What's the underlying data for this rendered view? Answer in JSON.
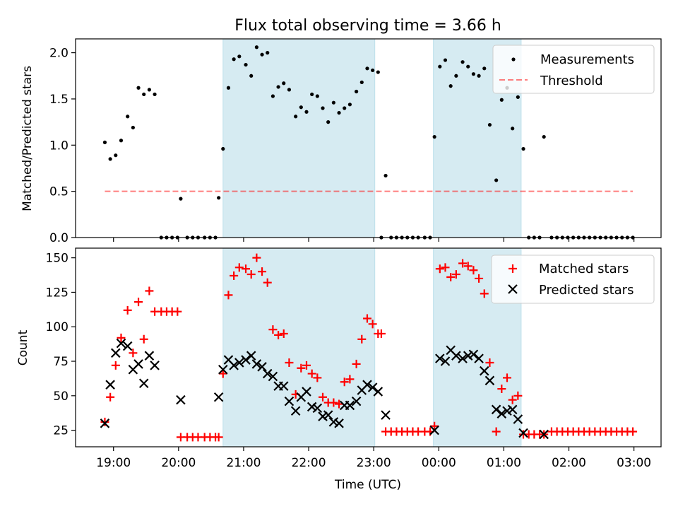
{
  "figure": {
    "title": "Flux total observing time = 3.66 h",
    "xlabel": "Time (UTC)",
    "x_ticks": [
      "19:00",
      "20:00",
      "21:00",
      "22:00",
      "23:00",
      "00:00",
      "01:00",
      "02:00",
      "03:00"
    ],
    "shaded_intervals": [
      [
        "20:41",
        "23:01"
      ],
      [
        "23:55",
        "01:16"
      ]
    ],
    "shade_color": "#add8e6"
  },
  "chart_data": [
    {
      "type": "scatter",
      "ylabel": "Matched/Predicted stars",
      "ylim": [
        0,
        2.15
      ],
      "y_ticks": [
        "0.0",
        "0.5",
        "1.0",
        "1.5",
        "2.0"
      ],
      "legend_placement": "top-right",
      "series": [
        {
          "name": "Measurements",
          "color": "#000000",
          "marker": "dot",
          "points": [
            [
              "18:52",
              1.03
            ],
            [
              "18:57",
              0.85
            ],
            [
              "19:02",
              0.89
            ],
            [
              "19:07",
              1.05
            ],
            [
              "19:13",
              1.31
            ],
            [
              "19:18",
              1.19
            ],
            [
              "19:23",
              1.62
            ],
            [
              "19:28",
              1.55
            ],
            [
              "19:33",
              1.6
            ],
            [
              "19:38",
              1.55
            ],
            [
              "19:44",
              0.0
            ],
            [
              "19:49",
              0.0
            ],
            [
              "19:54",
              0.0
            ],
            [
              "19:59",
              0.0
            ],
            [
              "20:02",
              0.42
            ],
            [
              "20:08",
              0.0
            ],
            [
              "20:13",
              0.0
            ],
            [
              "20:18",
              0.0
            ],
            [
              "20:24",
              0.0
            ],
            [
              "20:29",
              0.0
            ],
            [
              "20:34",
              0.0
            ],
            [
              "20:37",
              0.43
            ],
            [
              "20:41",
              0.96
            ],
            [
              "20:46",
              1.62
            ],
            [
              "20:51",
              1.93
            ],
            [
              "20:56",
              1.96
            ],
            [
              "21:02",
              1.87
            ],
            [
              "21:07",
              1.75
            ],
            [
              "21:12",
              2.06
            ],
            [
              "21:17",
              1.98
            ],
            [
              "21:22",
              2.0
            ],
            [
              "21:27",
              1.53
            ],
            [
              "21:32",
              1.63
            ],
            [
              "21:37",
              1.67
            ],
            [
              "21:42",
              1.6
            ],
            [
              "21:48",
              1.31
            ],
            [
              "21:53",
              1.41
            ],
            [
              "21:58",
              1.36
            ],
            [
              "22:03",
              1.55
            ],
            [
              "22:08",
              1.53
            ],
            [
              "22:13",
              1.4
            ],
            [
              "22:18",
              1.25
            ],
            [
              "22:23",
              1.46
            ],
            [
              "22:28",
              1.35
            ],
            [
              "22:33",
              1.4
            ],
            [
              "22:38",
              1.44
            ],
            [
              "22:44",
              1.58
            ],
            [
              "22:49",
              1.68
            ],
            [
              "22:54",
              1.83
            ],
            [
              "22:59",
              1.81
            ],
            [
              "23:04",
              1.79
            ],
            [
              "23:07",
              0.0
            ],
            [
              "23:11",
              0.67
            ],
            [
              "23:16",
              0.0
            ],
            [
              "23:21",
              0.0
            ],
            [
              "23:26",
              0.0
            ],
            [
              "23:31",
              0.0
            ],
            [
              "23:36",
              0.0
            ],
            [
              "23:41",
              0.0
            ],
            [
              "23:47",
              0.0
            ],
            [
              "23:52",
              0.0
            ],
            [
              "23:56",
              1.09
            ],
            [
              "00:01",
              1.85
            ],
            [
              "00:06",
              1.92
            ],
            [
              "00:11",
              1.64
            ],
            [
              "00:16",
              1.75
            ],
            [
              "00:22",
              1.9
            ],
            [
              "00:27",
              1.85
            ],
            [
              "00:32",
              1.77
            ],
            [
              "00:37",
              1.75
            ],
            [
              "00:42",
              1.83
            ],
            [
              "00:47",
              1.22
            ],
            [
              "00:53",
              0.62
            ],
            [
              "00:58",
              1.49
            ],
            [
              "01:03",
              1.62
            ],
            [
              "01:08",
              1.18
            ],
            [
              "01:13",
              1.52
            ],
            [
              "01:18",
              0.96
            ],
            [
              "01:23",
              0.0
            ],
            [
              "01:28",
              0.0
            ],
            [
              "01:33",
              0.0
            ],
            [
              "01:37",
              1.09
            ],
            [
              "01:44",
              0.0
            ],
            [
              "01:49",
              0.0
            ],
            [
              "01:54",
              0.0
            ],
            [
              "01:59",
              0.0
            ],
            [
              "02:04",
              0.0
            ],
            [
              "02:09",
              0.0
            ],
            [
              "02:14",
              0.0
            ],
            [
              "02:19",
              0.0
            ],
            [
              "02:24",
              0.0
            ],
            [
              "02:29",
              0.0
            ],
            [
              "02:34",
              0.0
            ],
            [
              "02:39",
              0.0
            ],
            [
              "02:44",
              0.0
            ],
            [
              "02:49",
              0.0
            ],
            [
              "02:54",
              0.0
            ],
            [
              "02:59",
              0.0
            ]
          ]
        },
        {
          "name": "Threshold",
          "color": "#ff0000",
          "style": "dashed",
          "opacity": 0.5,
          "y": 0.5,
          "x_range": [
            "18:52",
            "02:59"
          ]
        }
      ]
    },
    {
      "type": "scatter",
      "ylabel": "Count",
      "ylim": [
        13,
        157
      ],
      "y_ticks": [
        "25",
        "50",
        "75",
        "100",
        "125",
        "150"
      ],
      "legend_placement": "top-right",
      "series": [
        {
          "name": "Matched stars",
          "color": "#ff0000",
          "marker": "plus",
          "points": [
            [
              "18:52",
              31
            ],
            [
              "18:57",
              49
            ],
            [
              "19:02",
              72
            ],
            [
              "19:07",
              92
            ],
            [
              "19:13",
              112
            ],
            [
              "19:18",
              81
            ],
            [
              "19:23",
              118
            ],
            [
              "19:28",
              91
            ],
            [
              "19:33",
              126
            ],
            [
              "19:38",
              111
            ],
            [
              "19:44",
              111
            ],
            [
              "19:49",
              111
            ],
            [
              "19:54",
              111
            ],
            [
              "19:59",
              111
            ],
            [
              "20:02",
              20
            ],
            [
              "20:08",
              20
            ],
            [
              "20:13",
              20
            ],
            [
              "20:18",
              20
            ],
            [
              "20:24",
              20
            ],
            [
              "20:29",
              20
            ],
            [
              "20:34",
              20
            ],
            [
              "20:37",
              20
            ],
            [
              "20:41",
              66
            ],
            [
              "20:46",
              123
            ],
            [
              "20:51",
              137
            ],
            [
              "20:56",
              143
            ],
            [
              "21:02",
              142
            ],
            [
              "21:07",
              138
            ],
            [
              "21:12",
              150
            ],
            [
              "21:17",
              140
            ],
            [
              "21:22",
              132
            ],
            [
              "21:27",
              98
            ],
            [
              "21:32",
              94
            ],
            [
              "21:37",
              95
            ],
            [
              "21:42",
              74
            ],
            [
              "21:48",
              51
            ],
            [
              "21:53",
              70
            ],
            [
              "21:58",
              72
            ],
            [
              "22:03",
              66
            ],
            [
              "22:08",
              63
            ],
            [
              "22:13",
              49
            ],
            [
              "22:18",
              45
            ],
            [
              "22:23",
              45
            ],
            [
              "22:28",
              44
            ],
            [
              "22:33",
              60
            ],
            [
              "22:38",
              62
            ],
            [
              "22:44",
              73
            ],
            [
              "22:49",
              91
            ],
            [
              "22:54",
              106
            ],
            [
              "22:59",
              102
            ],
            [
              "23:04",
              95
            ],
            [
              "23:07",
              95
            ],
            [
              "23:11",
              24
            ],
            [
              "23:16",
              24
            ],
            [
              "23:21",
              24
            ],
            [
              "23:26",
              24
            ],
            [
              "23:31",
              24
            ],
            [
              "23:36",
              24
            ],
            [
              "23:41",
              24
            ],
            [
              "23:47",
              24
            ],
            [
              "23:52",
              24
            ],
            [
              "23:56",
              28
            ],
            [
              "00:01",
              142
            ],
            [
              "00:06",
              143
            ],
            [
              "00:11",
              136
            ],
            [
              "00:16",
              138
            ],
            [
              "00:22",
              146
            ],
            [
              "00:27",
              144
            ],
            [
              "00:32",
              141
            ],
            [
              "00:37",
              135
            ],
            [
              "00:42",
              124
            ],
            [
              "00:47",
              74
            ],
            [
              "00:53",
              24
            ],
            [
              "00:58",
              55
            ],
            [
              "01:03",
              63
            ],
            [
              "01:08",
              47
            ],
            [
              "01:13",
              50
            ],
            [
              "01:18",
              22
            ],
            [
              "01:23",
              22
            ],
            [
              "01:28",
              22
            ],
            [
              "01:33",
              22
            ],
            [
              "01:37",
              22
            ],
            [
              "01:44",
              24
            ],
            [
              "01:49",
              24
            ],
            [
              "01:54",
              24
            ],
            [
              "01:59",
              24
            ],
            [
              "02:04",
              24
            ],
            [
              "02:09",
              24
            ],
            [
              "02:14",
              24
            ],
            [
              "02:19",
              24
            ],
            [
              "02:24",
              24
            ],
            [
              "02:29",
              24
            ],
            [
              "02:34",
              24
            ],
            [
              "02:39",
              24
            ],
            [
              "02:44",
              24
            ],
            [
              "02:49",
              24
            ],
            [
              "02:54",
              24
            ],
            [
              "02:59",
              24
            ]
          ]
        },
        {
          "name": "Predicted stars",
          "color": "#000000",
          "marker": "x",
          "points": [
            [
              "18:52",
              30
            ],
            [
              "18:57",
              58
            ],
            [
              "19:02",
              81
            ],
            [
              "19:07",
              88
            ],
            [
              "19:13",
              86
            ],
            [
              "19:18",
              69
            ],
            [
              "19:23",
              73
            ],
            [
              "19:28",
              59
            ],
            [
              "19:33",
              79
            ],
            [
              "19:38",
              72
            ],
            [
              "20:02",
              47
            ],
            [
              "20:37",
              49
            ],
            [
              "20:41",
              69
            ],
            [
              "20:46",
              76
            ],
            [
              "20:51",
              72
            ],
            [
              "20:56",
              74
            ],
            [
              "21:02",
              76
            ],
            [
              "21:07",
              79
            ],
            [
              "21:12",
              73
            ],
            [
              "21:17",
              71
            ],
            [
              "21:22",
              66
            ],
            [
              "21:27",
              64
            ],
            [
              "21:32",
              57
            ],
            [
              "21:37",
              57
            ],
            [
              "21:42",
              46
            ],
            [
              "21:48",
              39
            ],
            [
              "21:53",
              49
            ],
            [
              "21:58",
              53
            ],
            [
              "22:03",
              42
            ],
            [
              "22:08",
              41
            ],
            [
              "22:13",
              35
            ],
            [
              "22:18",
              36
            ],
            [
              "22:23",
              31
            ],
            [
              "22:28",
              30
            ],
            [
              "22:33",
              43
            ],
            [
              "22:38",
              43
            ],
            [
              "22:44",
              46
            ],
            [
              "22:49",
              54
            ],
            [
              "22:54",
              58
            ],
            [
              "22:59",
              56
            ],
            [
              "23:04",
              53
            ],
            [
              "23:11",
              36
            ],
            [
              "23:56",
              25
            ],
            [
              "00:01",
              77
            ],
            [
              "00:06",
              75
            ],
            [
              "00:11",
              83
            ],
            [
              "00:16",
              79
            ],
            [
              "00:22",
              77
            ],
            [
              "00:27",
              79
            ],
            [
              "00:32",
              80
            ],
            [
              "00:37",
              77
            ],
            [
              "00:42",
              68
            ],
            [
              "00:47",
              61
            ],
            [
              "00:53",
              40
            ],
            [
              "00:58",
              37
            ],
            [
              "01:03",
              39
            ],
            [
              "01:08",
              40
            ],
            [
              "01:13",
              33
            ],
            [
              "01:18",
              23
            ],
            [
              "01:37",
              22
            ]
          ]
        }
      ]
    }
  ]
}
